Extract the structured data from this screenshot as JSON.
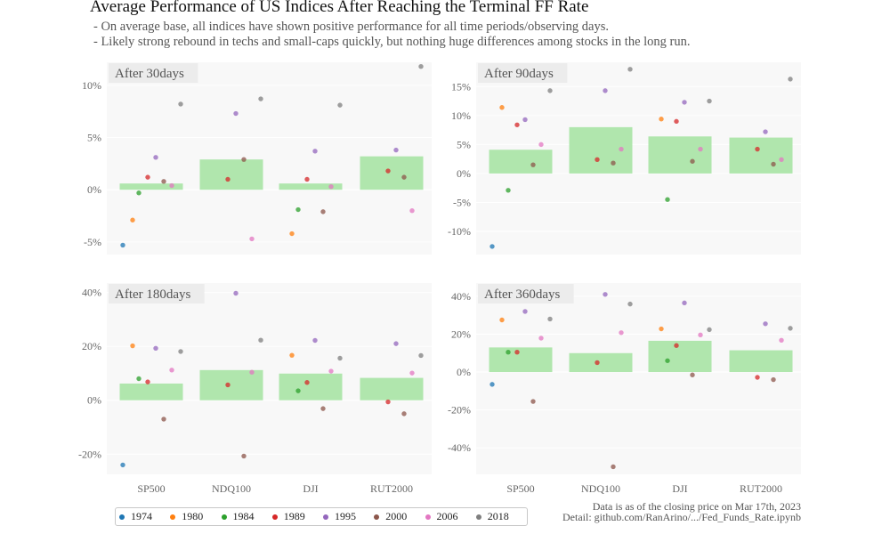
{
  "header": {
    "title": "Average Performance of US Indices After Reaching the Terminal FF Rate",
    "line1": "- On average base, all indices have shown positive performance for all time periods/observing days.",
    "line2": "- Likely strong rebound in techs and small-caps quickly, but nothing huge differences among stocks in the long run."
  },
  "footer": {
    "note1": "Data is as of the closing price on Mar 17th, 2023",
    "note2": "Detail: github.com/RanArino/.../Fed_Funds_Rate.ipynb"
  },
  "chart_data": [
    {
      "type": "bar",
      "title": "After 30days",
      "categories": [
        "SP500",
        "NDQ100",
        "DJI",
        "RUT2000"
      ],
      "values": [
        0.6,
        2.9,
        0.6,
        3.2
      ],
      "ylim": [
        -6.2,
        12.2
      ],
      "yticks": [
        -5,
        0,
        5,
        10
      ],
      "yticklabels": [
        "-5%",
        "0%",
        "5%",
        "10%"
      ],
      "points": {
        "1974": [
          -5.3,
          null,
          null,
          null
        ],
        "1980": [
          -2.9,
          null,
          -4.2,
          null
        ],
        "1984": [
          -0.3,
          null,
          -1.9,
          null
        ],
        "1989": [
          1.2,
          1.0,
          1.0,
          1.8
        ],
        "1995": [
          3.1,
          7.3,
          3.7,
          3.8
        ],
        "2000": [
          0.8,
          2.9,
          -2.1,
          1.2
        ],
        "2006": [
          0.4,
          -4.7,
          0.3,
          -2.0
        ],
        "2018": [
          8.2,
          8.7,
          8.1,
          11.8
        ]
      }
    },
    {
      "type": "bar",
      "title": "After 90days",
      "categories": [
        "SP500",
        "NDQ100",
        "DJI",
        "RUT2000"
      ],
      "values": [
        4.1,
        8.0,
        6.4,
        6.2
      ],
      "ylim": [
        -14.0,
        19.2
      ],
      "yticks": [
        -10,
        -5,
        0,
        5,
        10,
        15
      ],
      "yticklabels": [
        "-10%",
        "-5%",
        "0%",
        "5%",
        "10%",
        "15%"
      ],
      "points": {
        "1974": [
          -12.6,
          null,
          null,
          null
        ],
        "1980": [
          11.4,
          null,
          9.4,
          null
        ],
        "1984": [
          -2.9,
          null,
          -4.5,
          null
        ],
        "1989": [
          8.4,
          2.4,
          9.0,
          4.2
        ],
        "1995": [
          9.3,
          14.3,
          12.3,
          7.2
        ],
        "2000": [
          1.5,
          1.8,
          2.1,
          1.6
        ],
        "2006": [
          5.0,
          4.2,
          4.2,
          2.4
        ],
        "2018": [
          14.3,
          18.0,
          12.5,
          16.3
        ]
      }
    },
    {
      "type": "bar",
      "title": "After 180days",
      "categories": [
        "SP500",
        "NDQ100",
        "DJI",
        "RUT2000"
      ],
      "values": [
        6.2,
        11.2,
        9.9,
        8.3
      ],
      "ylim": [
        -27.5,
        43.5
      ],
      "yticks": [
        -20,
        0,
        20,
        40
      ],
      "yticklabels": [
        "-20%",
        "0%",
        "20%",
        "40%"
      ],
      "points": {
        "1974": [
          -24.0,
          null,
          null,
          null
        ],
        "1980": [
          20.2,
          null,
          16.7,
          null
        ],
        "1984": [
          8.0,
          null,
          3.5,
          null
        ],
        "1989": [
          6.8,
          5.7,
          6.6,
          -0.6
        ],
        "1995": [
          19.3,
          39.7,
          22.2,
          21.0
        ],
        "2000": [
          -7.0,
          -20.7,
          -3.1,
          -5.0
        ],
        "2006": [
          11.2,
          10.4,
          10.8,
          10.1
        ],
        "2018": [
          18.1,
          22.3,
          15.6,
          16.6
        ]
      }
    },
    {
      "type": "bar",
      "title": "After 360days",
      "categories": [
        "SP500",
        "NDQ100",
        "DJI",
        "RUT2000"
      ],
      "values": [
        13.0,
        10.0,
        16.5,
        11.5
      ],
      "ylim": [
        -54.0,
        47.0
      ],
      "yticks": [
        -40,
        -20,
        0,
        20,
        40
      ],
      "yticklabels": [
        "-40%",
        "-20%",
        "0%",
        "20%",
        "40%"
      ],
      "points": {
        "1974": [
          -6.5,
          null,
          null,
          null
        ],
        "1980": [
          27.5,
          null,
          22.8,
          null
        ],
        "1984": [
          10.5,
          null,
          6.0,
          null
        ],
        "1989": [
          10.5,
          5.0,
          14.0,
          -2.8
        ],
        "1995": [
          32.0,
          41.0,
          36.5,
          25.5
        ],
        "2000": [
          -15.5,
          -50.0,
          -1.5,
          -4.0
        ],
        "2006": [
          17.9,
          20.8,
          19.6,
          16.8
        ],
        "2018": [
          28.0,
          35.9,
          22.4,
          23.1
        ]
      }
    }
  ],
  "legend": [
    {
      "label": "1974",
      "color": "#1f77b4"
    },
    {
      "label": "1980",
      "color": "#ff7f0e"
    },
    {
      "label": "1984",
      "color": "#2ca02c"
    },
    {
      "label": "1989",
      "color": "#d62728"
    },
    {
      "label": "1995",
      "color": "#9467bd"
    },
    {
      "label": "2000",
      "color": "#8c564b"
    },
    {
      "label": "2006",
      "color": "#e377c2"
    },
    {
      "label": "2018",
      "color": "#7f7f7f"
    }
  ],
  "colors": {
    "bar": "#b0e6ad",
    "panel": "#f8f8f8",
    "title_box": "#ececec"
  }
}
